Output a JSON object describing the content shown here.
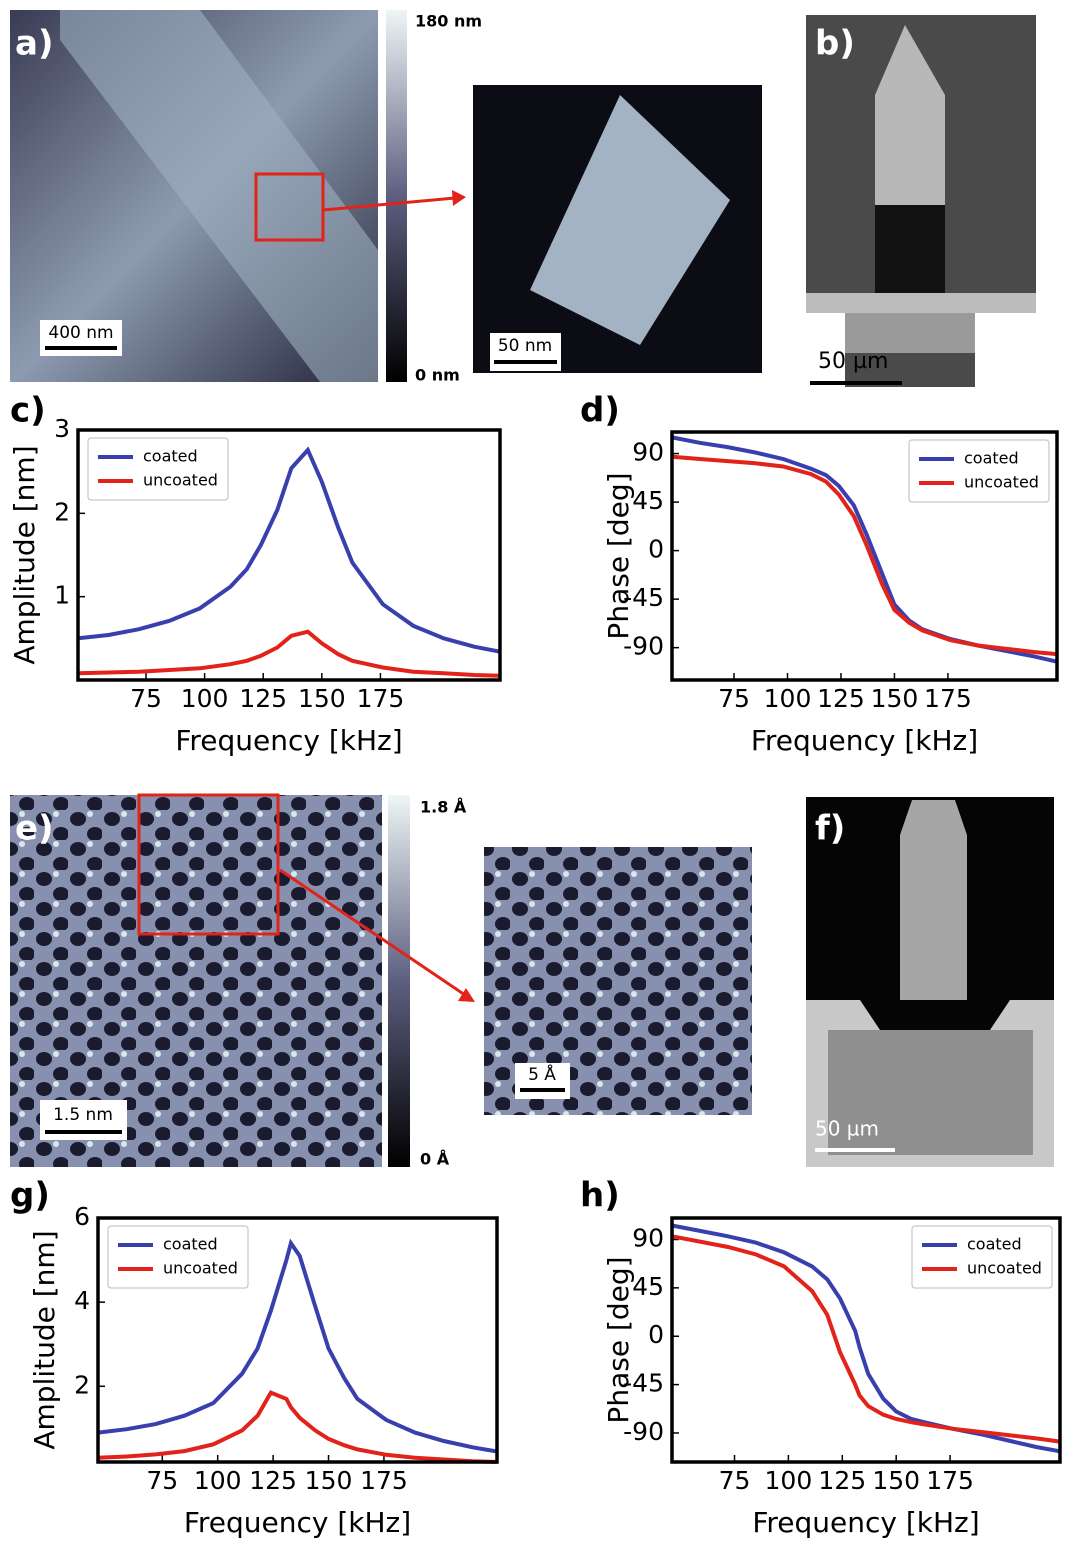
{
  "panels": {
    "labels": [
      "a)",
      "b)",
      "c)",
      "d)",
      "e)",
      "f)",
      "g)",
      "h)"
    ]
  },
  "images": {
    "a": {
      "scale_bar": "400 nm",
      "colorbar_max": "180 nm",
      "colorbar_min": "0 nm",
      "inset_scale_bar": "50 nm"
    },
    "b": {
      "scale_bar": "50 µm"
    },
    "e": {
      "scale_bar": "1.5 nm",
      "colorbar_max": "1.8 Å",
      "colorbar_min": "0 Å",
      "inset_scale_bar": "5 Å"
    },
    "f": {
      "scale_bar": "50 µm"
    }
  },
  "chart_data": [
    {
      "type": "line",
      "xlabel": "Frequency [kHz]",
      "ylabel": "Amplitude [nm]",
      "x": [
        46,
        59,
        72,
        85,
        98,
        111,
        118,
        124,
        131,
        137,
        144,
        150,
        157,
        163,
        176,
        189,
        202,
        215,
        226
      ],
      "series": [
        {
          "name": "coated",
          "color": "#3a3fae",
          "values": [
            0.5,
            0.54,
            0.61,
            0.71,
            0.86,
            1.12,
            1.33,
            1.62,
            2.04,
            2.54,
            2.76,
            2.38,
            1.83,
            1.41,
            0.91,
            0.65,
            0.5,
            0.4,
            0.34
          ]
        },
        {
          "name": "uncoated",
          "color": "#e2231a",
          "values": [
            0.08,
            0.09,
            0.1,
            0.12,
            0.14,
            0.19,
            0.23,
            0.29,
            0.39,
            0.53,
            0.58,
            0.44,
            0.31,
            0.23,
            0.15,
            0.1,
            0.08,
            0.06,
            0.05
          ]
        }
      ],
      "xlim": [
        46,
        226
      ],
      "ylim": [
        0,
        3
      ],
      "xticks": [
        75,
        100,
        125,
        150,
        175
      ],
      "yticks": [
        1,
        2,
        3
      ],
      "legend": "upper left"
    },
    {
      "type": "line",
      "xlabel": "Frequency [kHz]",
      "ylabel": "Phase [deg]",
      "x": [
        46,
        59,
        72,
        85,
        98,
        111,
        118,
        124,
        131,
        137,
        144,
        150,
        157,
        163,
        176,
        189,
        202,
        215,
        226
      ],
      "series": [
        {
          "name": "coated",
          "color": "#3a3fae",
          "values": [
            105,
            100,
            96,
            91,
            85,
            76,
            70,
            60,
            42,
            15,
            -20,
            -50,
            -65,
            -73,
            -82,
            -88,
            -93,
            -98,
            -103
          ]
        },
        {
          "name": "uncoated",
          "color": "#e2231a",
          "values": [
            87,
            85,
            83,
            81,
            78,
            71,
            64,
            52,
            32,
            5,
            -30,
            -55,
            -67,
            -74,
            -83,
            -88,
            -91,
            -94,
            -96
          ]
        }
      ],
      "xlim": [
        46,
        226
      ],
      "ylim": [
        -120,
        110
      ],
      "xticks": [
        75,
        100,
        125,
        150,
        175
      ],
      "yticks": [
        -90,
        -45,
        0,
        45,
        90
      ],
      "legend": "upper right"
    },
    {
      "type": "line",
      "xlabel": "Frequency [kHz]",
      "ylabel": "Amplitude [nm]",
      "x": [
        46,
        59,
        72,
        85,
        98,
        111,
        118,
        124,
        131,
        133,
        137,
        144,
        150,
        157,
        163,
        176,
        189,
        202,
        215,
        226
      ],
      "series": [
        {
          "name": "coated",
          "color": "#3a3fae",
          "values": [
            0.9,
            0.98,
            1.1,
            1.3,
            1.6,
            2.3,
            2.9,
            3.8,
            5.0,
            5.4,
            5.1,
            3.9,
            2.9,
            2.2,
            1.7,
            1.2,
            0.9,
            0.7,
            0.55,
            0.45
          ]
        },
        {
          "name": "uncoated",
          "color": "#e2231a",
          "values": [
            0.3,
            0.33,
            0.38,
            0.46,
            0.62,
            0.95,
            1.3,
            1.85,
            1.7,
            1.5,
            1.25,
            0.95,
            0.75,
            0.6,
            0.5,
            0.37,
            0.3,
            0.26,
            0.22,
            0.2
          ]
        }
      ],
      "xlim": [
        46,
        226
      ],
      "ylim": [
        0.2,
        6
      ],
      "xticks": [
        75,
        100,
        125,
        150,
        175
      ],
      "yticks": [
        2,
        4,
        6
      ],
      "legend": "upper left"
    },
    {
      "type": "line",
      "xlabel": "Frequency [kHz]",
      "ylabel": "Phase [deg]",
      "x": [
        46,
        59,
        72,
        85,
        98,
        111,
        118,
        124,
        131,
        133,
        137,
        144,
        150,
        157,
        163,
        176,
        189,
        202,
        215,
        226
      ],
      "series": [
        {
          "name": "coated",
          "color": "#3a3fae",
          "values": [
            103,
            98,
            93,
            87,
            78,
            65,
            53,
            35,
            5,
            -10,
            -35,
            -58,
            -70,
            -77,
            -80,
            -86,
            -91,
            -97,
            -103,
            -107
          ]
        },
        {
          "name": "uncoated",
          "color": "#e2231a",
          "values": [
            93,
            88,
            83,
            76,
            65,
            42,
            20,
            -15,
            -45,
            -55,
            -65,
            -73,
            -77,
            -80,
            -82,
            -86,
            -89,
            -92,
            -95,
            -98
          ]
        }
      ],
      "xlim": [
        46,
        226
      ],
      "ylim": [
        -117,
        110
      ],
      "xticks": [
        75,
        100,
        125,
        150,
        175
      ],
      "yticks": [
        -90,
        -45,
        0,
        45,
        90
      ],
      "legend": "upper right"
    }
  ]
}
